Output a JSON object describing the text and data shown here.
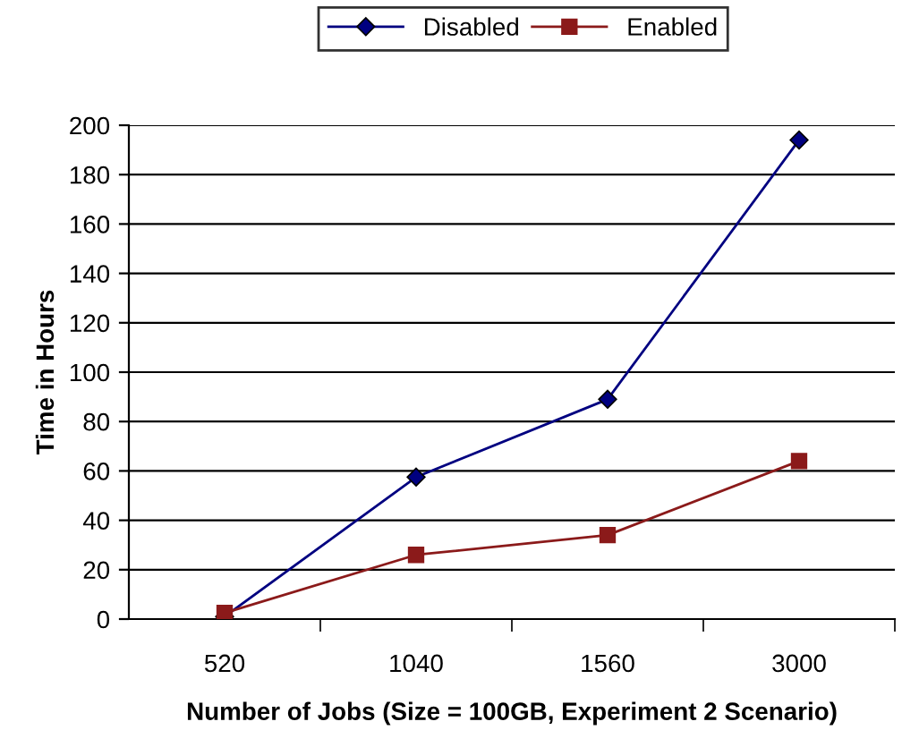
{
  "chart_data": {
    "type": "line",
    "xlabel": "Number of Jobs (Size = 100GB, Experiment 2 Scenario)",
    "ylabel": "Time in Hours",
    "categories": [
      "520",
      "1040",
      "1560",
      "3000"
    ],
    "series": [
      {
        "name": "Disabled",
        "color": "#000080",
        "marker": "diamond",
        "values": [
          1,
          57.5,
          89,
          194
        ]
      },
      {
        "name": "Enabled",
        "color": "#8b1a1a",
        "marker": "square",
        "values": [
          2.5,
          26,
          34,
          64
        ]
      }
    ],
    "ylim": [
      0,
      200
    ],
    "yticks": [
      0,
      20,
      40,
      60,
      80,
      100,
      120,
      140,
      160,
      180,
      200
    ],
    "grid": "y",
    "legend": "top"
  }
}
